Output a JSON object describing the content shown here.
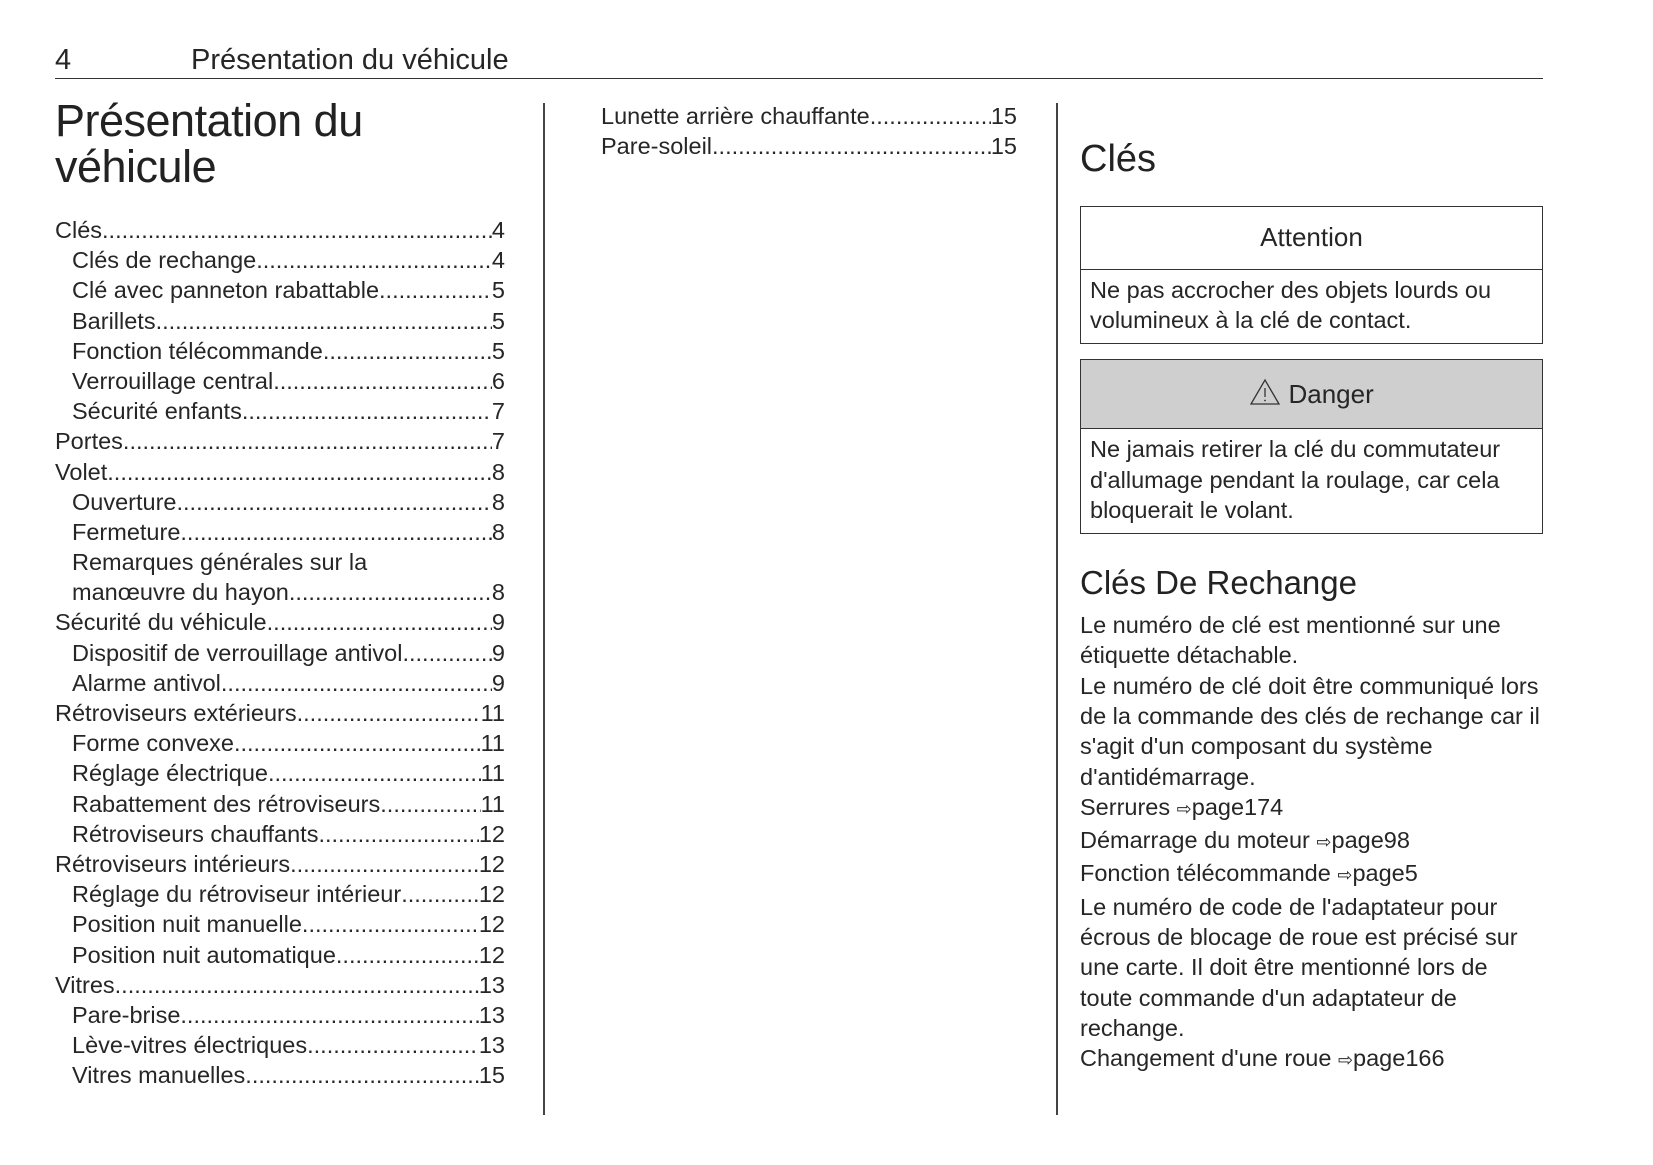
{
  "header": {
    "page_number": "4",
    "title": "Présentation du véhicule"
  },
  "main_title": "Présentation du véhicule",
  "toc": [
    {
      "label": "Clés",
      "page": "4",
      "level": 0
    },
    {
      "label": "Clés de rechange",
      "page": "4",
      "level": 1
    },
    {
      "label": "Clé avec panneton rabattable",
      "page": "5",
      "level": 1
    },
    {
      "label": "Barillets",
      "page": "5",
      "level": 1
    },
    {
      "label": "Fonction télécommande",
      "page": "5",
      "level": 1
    },
    {
      "label": "Verrouillage central",
      "page": "6",
      "level": 1
    },
    {
      "label": "Sécurité enfants",
      "page": "7",
      "level": 1
    },
    {
      "label": "Portes",
      "page": "7",
      "level": 0
    },
    {
      "label": "Volet",
      "page": "8",
      "level": 0
    },
    {
      "label": "Ouverture",
      "page": "8",
      "level": 1
    },
    {
      "label": "Fermeture",
      "page": "8",
      "level": 1
    },
    {
      "label": "Remarques générales sur la",
      "page": "",
      "level": 1
    },
    {
      "label": "manœuvre du hayon",
      "page": "8",
      "level": 1
    },
    {
      "label": "Sécurité du véhicule",
      "page": "9",
      "level": 0
    },
    {
      "label": "Dispositif de verrouillage antivol",
      "page": "9",
      "level": 1
    },
    {
      "label": "Alarme antivol",
      "page": "9",
      "level": 1
    },
    {
      "label": "Rétroviseurs extérieurs",
      "page": "11",
      "level": 0
    },
    {
      "label": "Forme convexe",
      "page": "11",
      "level": 1
    },
    {
      "label": "Réglage électrique",
      "page": "11",
      "level": 1
    },
    {
      "label": "Rabattement des rétroviseurs",
      "page": "11",
      "level": 1
    },
    {
      "label": "Rétroviseurs chauffants",
      "page": "12",
      "level": 1
    },
    {
      "label": "Rétroviseurs intérieurs",
      "page": "12",
      "level": 0
    },
    {
      "label": "Réglage du rétroviseur intérieur",
      "page": "12",
      "level": 1
    },
    {
      "label": "Position nuit manuelle",
      "page": "12",
      "level": 1
    },
    {
      "label": "Position nuit automatique",
      "page": "12",
      "level": 1
    },
    {
      "label": "Vitres",
      "page": "13",
      "level": 0
    },
    {
      "label": "Pare-brise",
      "page": "13",
      "level": 1
    },
    {
      "label": "Lève-vitres électriques",
      "page": "13",
      "level": 1
    },
    {
      "label": "Vitres manuelles",
      "page": "15",
      "level": 1
    }
  ],
  "toc2": [
    {
      "label": "Lunette arrière chauffante",
      "page": "15",
      "level": 1
    },
    {
      "label": "Pare-soleil",
      "page": "15",
      "level": 1
    }
  ],
  "section": {
    "title": "Clés",
    "attention": {
      "title": "Attention",
      "text": "Ne pas accrocher des objets lourds ou volumineux à la clé de contact."
    },
    "danger": {
      "icon": "warning-triangle-icon",
      "title": "Danger",
      "text": "Ne jamais retirer la clé du commutateur d'allumage pendant la roulage, car cela bloquerait le volant."
    },
    "subtitle": "Clés De Rechange",
    "p1": "Le numéro de clé est mentionné sur une étiquette détachable.",
    "p2": "Le numéro de clé doit être communiqué lors de la commande des clés de rechange car il s'agit d'un composant du système d'antidémarrage.",
    "refs": [
      {
        "label": "Serrures",
        "target": "page174"
      },
      {
        "label": "Démarrage du moteur",
        "target": "page98"
      },
      {
        "label": "Fonction télécommande",
        "target": "page5"
      }
    ],
    "p3": "Le numéro de code de l'adaptateur pour écrous de blocage de roue est précisé sur une carte. Il doit être mentionné lors de toute commande d'un adaptateur de rechange.",
    "ref_last": {
      "label": "Changement d'une roue",
      "target": "page166"
    },
    "arrow": "⇨"
  }
}
